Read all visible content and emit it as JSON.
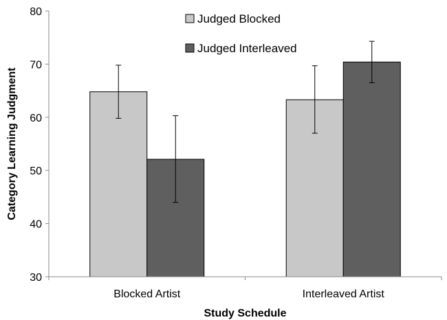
{
  "chart_data": {
    "type": "bar",
    "categories": [
      "Blocked Artist",
      "Interleaved Artist"
    ],
    "series": [
      {
        "name": "Judged Blocked",
        "color": "#c8c8c8",
        "values": [
          64.8,
          63.3
        ],
        "error_low": [
          59.8,
          57.0
        ],
        "error_high": [
          69.8,
          69.7
        ]
      },
      {
        "name": "Judged Interleaved",
        "color": "#5f5f5f",
        "values": [
          52.1,
          70.4
        ],
        "error_low": [
          44.0,
          66.5
        ],
        "error_high": [
          60.3,
          74.3
        ]
      }
    ],
    "xlabel": "Study Schedule",
    "ylabel": "Category Learning Judgment",
    "ylim": [
      30,
      80
    ],
    "yticks": [
      30,
      40,
      50,
      60,
      70,
      80
    ],
    "grid": false,
    "legend_position": "top-center"
  }
}
